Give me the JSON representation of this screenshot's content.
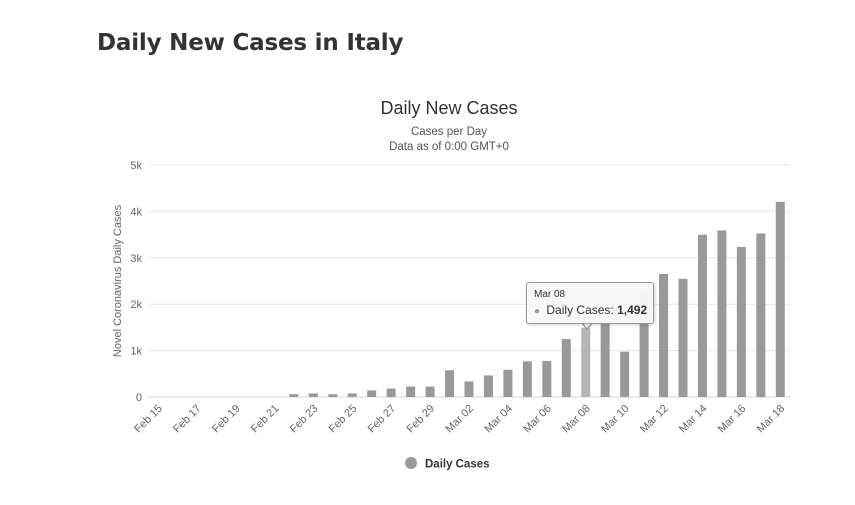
{
  "page": {
    "heading": "Daily New Cases in Italy"
  },
  "tooltip": {
    "date": "Mar 08",
    "series_label": "Daily Cases:",
    "value": "1,492"
  },
  "colors": {
    "bar": "#999999",
    "grid": "#e6e6e6",
    "axis_text": "#666666",
    "title_text": "#333333"
  },
  "chart_data": {
    "type": "bar",
    "title": "Daily New Cases",
    "subtitle_lines": [
      "Cases per Day",
      "Data as of 0:00 GMT+0"
    ],
    "ylabel": "Novel Coronavirus Daily Cases",
    "xlabel": "",
    "ylim": [
      0,
      5000
    ],
    "yticks": [
      0,
      1000,
      2000,
      3000,
      4000,
      5000
    ],
    "ytick_labels": [
      "0",
      "1k",
      "2k",
      "3k",
      "4k",
      "5k"
    ],
    "grid": true,
    "legend_position": "bottom-center",
    "categories": [
      "Feb 15",
      "Feb 16",
      "Feb 17",
      "Feb 18",
      "Feb 19",
      "Feb 20",
      "Feb 21",
      "Feb 22",
      "Feb 23",
      "Feb 24",
      "Feb 25",
      "Feb 26",
      "Feb 27",
      "Feb 28",
      "Feb 29",
      "Mar 01",
      "Mar 02",
      "Mar 03",
      "Mar 04",
      "Mar 05",
      "Mar 06",
      "Mar 07",
      "Mar 08",
      "Mar 09",
      "Mar 10",
      "Mar 11",
      "Mar 12",
      "Mar 13",
      "Mar 14",
      "Mar 15",
      "Mar 16",
      "Mar 17",
      "Mar 18"
    ],
    "xtick_labels": [
      "Feb 15",
      "Feb 17",
      "Feb 19",
      "Feb 21",
      "Feb 23",
      "Feb 25",
      "Feb 27",
      "Feb 29",
      "Mar 02",
      "Mar 04",
      "Mar 06",
      "Mar 08",
      "Mar 10",
      "Mar 12",
      "Mar 14",
      "Mar 16",
      "Mar 18"
    ],
    "series": [
      {
        "name": "Daily Cases",
        "values": [
          0,
          0,
          0,
          0,
          0,
          0,
          0,
          62,
          77,
          60,
          78,
          142,
          183,
          226,
          223,
          576,
          335,
          466,
          587,
          769,
          778,
          1247,
          1492,
          1797,
          977,
          2313,
          2651,
          2547,
          3497,
          3590,
          3233,
          3526,
          4207
        ]
      }
    ],
    "highlighted_category": "Mar 08"
  }
}
